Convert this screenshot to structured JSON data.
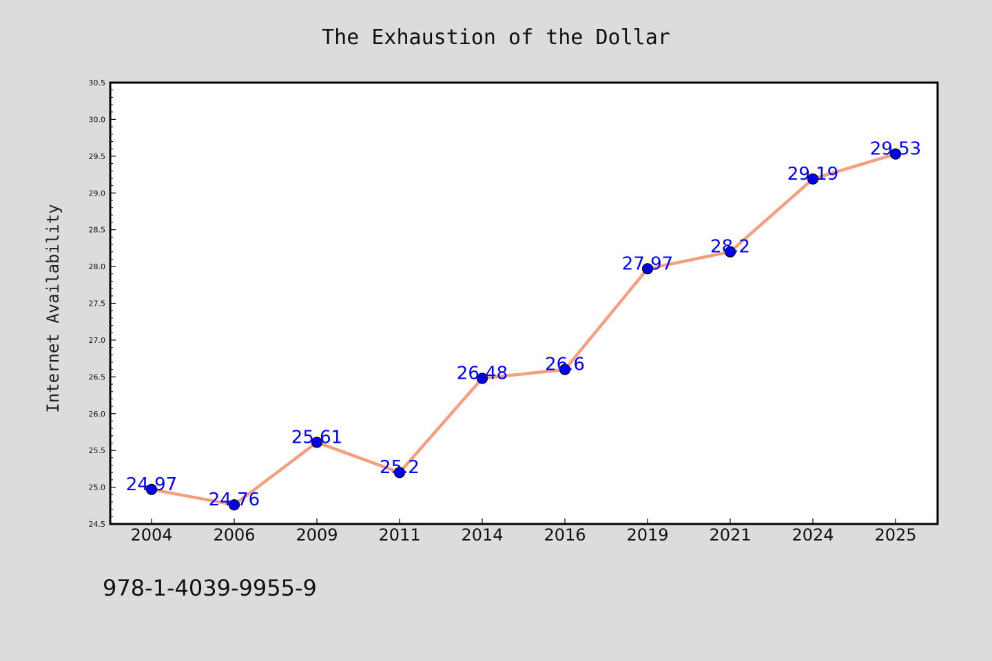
{
  "chart_data": {
    "type": "line",
    "title": "The Exhaustion of the Dollar",
    "xlabel": "",
    "ylabel": "Internet Availability",
    "categories": [
      "2004",
      "2006",
      "2009",
      "2011",
      "2014",
      "2016",
      "2019",
      "2021",
      "2024",
      "2025"
    ],
    "series": [
      {
        "values": [
          24.97,
          24.76,
          25.61,
          25.2,
          26.48,
          26.6,
          27.97,
          28.2,
          29.19,
          29.53
        ],
        "data_labels": [
          "24.97",
          "24.76",
          "25.61",
          "25.2",
          "26.48",
          "26.6",
          "27.97",
          "28.2",
          "29.19",
          "29.53"
        ]
      }
    ],
    "ylim": [
      24.5,
      30.5
    ],
    "yticks": [
      "24.5",
      "25.0",
      "25.5",
      "26.0",
      "26.5",
      "27.0",
      "27.5",
      "28.0",
      "28.5",
      "29.0",
      "29.5",
      "30.0",
      "30.5"
    ],
    "grid": false,
    "legend": "none"
  },
  "footer": {
    "isbn": "978-1-4039-9955-9"
  },
  "colors": {
    "background": "#dcdcdc",
    "plot_background": "#ffffff",
    "line": "#f4a07e",
    "marker": "#0000ee",
    "data_label": "#0000ff",
    "axis": "#000000"
  }
}
